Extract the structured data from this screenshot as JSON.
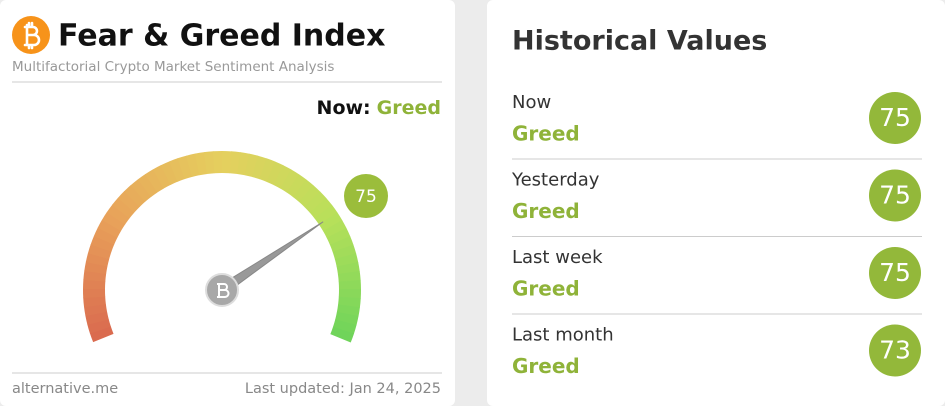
{
  "gauge_panel": {
    "title": "Fear & Greed Index",
    "subtitle": "Multifactorial Crypto Market Sentiment Analysis",
    "now_label": "Now:",
    "now_class": "Greed",
    "value": 75,
    "source": "alternative.me",
    "last_updated": "Last updated: Jan 24, 2025"
  },
  "history": {
    "title": "Historical Values",
    "rows": [
      {
        "label": "Now",
        "classification": "Greed",
        "value": 75
      },
      {
        "label": "Yesterday",
        "classification": "Greed",
        "value": 75
      },
      {
        "label": "Last week",
        "classification": "Greed",
        "value": 75
      },
      {
        "label": "Last month",
        "classification": "Greed",
        "value": 73
      }
    ]
  }
}
